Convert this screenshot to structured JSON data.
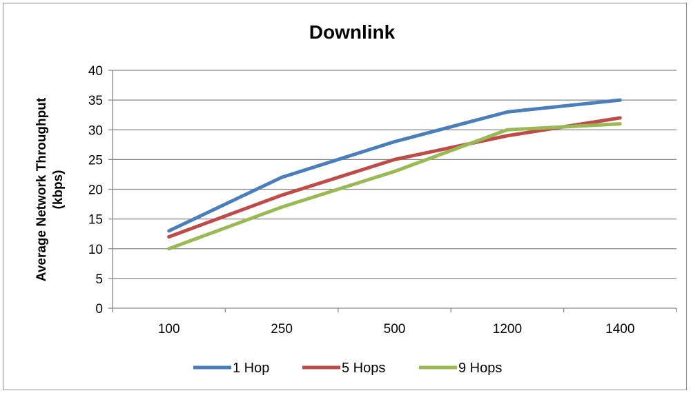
{
  "chart_data": {
    "type": "line",
    "title": "Downlink",
    "xlabel": "",
    "ylabel_line1": "Average Network Throughput",
    "ylabel_line2": "(kbps)",
    "categories": [
      "100",
      "250",
      "500",
      "1200",
      "1400"
    ],
    "ylim": [
      0,
      40
    ],
    "yticks": [
      0,
      5,
      10,
      15,
      20,
      25,
      30,
      35,
      40
    ],
    "grid": true,
    "legend": "bottom",
    "series": [
      {
        "name": "1 Hop",
        "color": "#4a7ebb",
        "values": [
          13,
          22,
          28,
          33,
          35
        ]
      },
      {
        "name": "5 Hops",
        "color": "#be4b48",
        "values": [
          12,
          19,
          25,
          29,
          32
        ]
      },
      {
        "name": "9 Hops",
        "color": "#98b954",
        "values": [
          10,
          17,
          23,
          30,
          31
        ]
      }
    ]
  }
}
